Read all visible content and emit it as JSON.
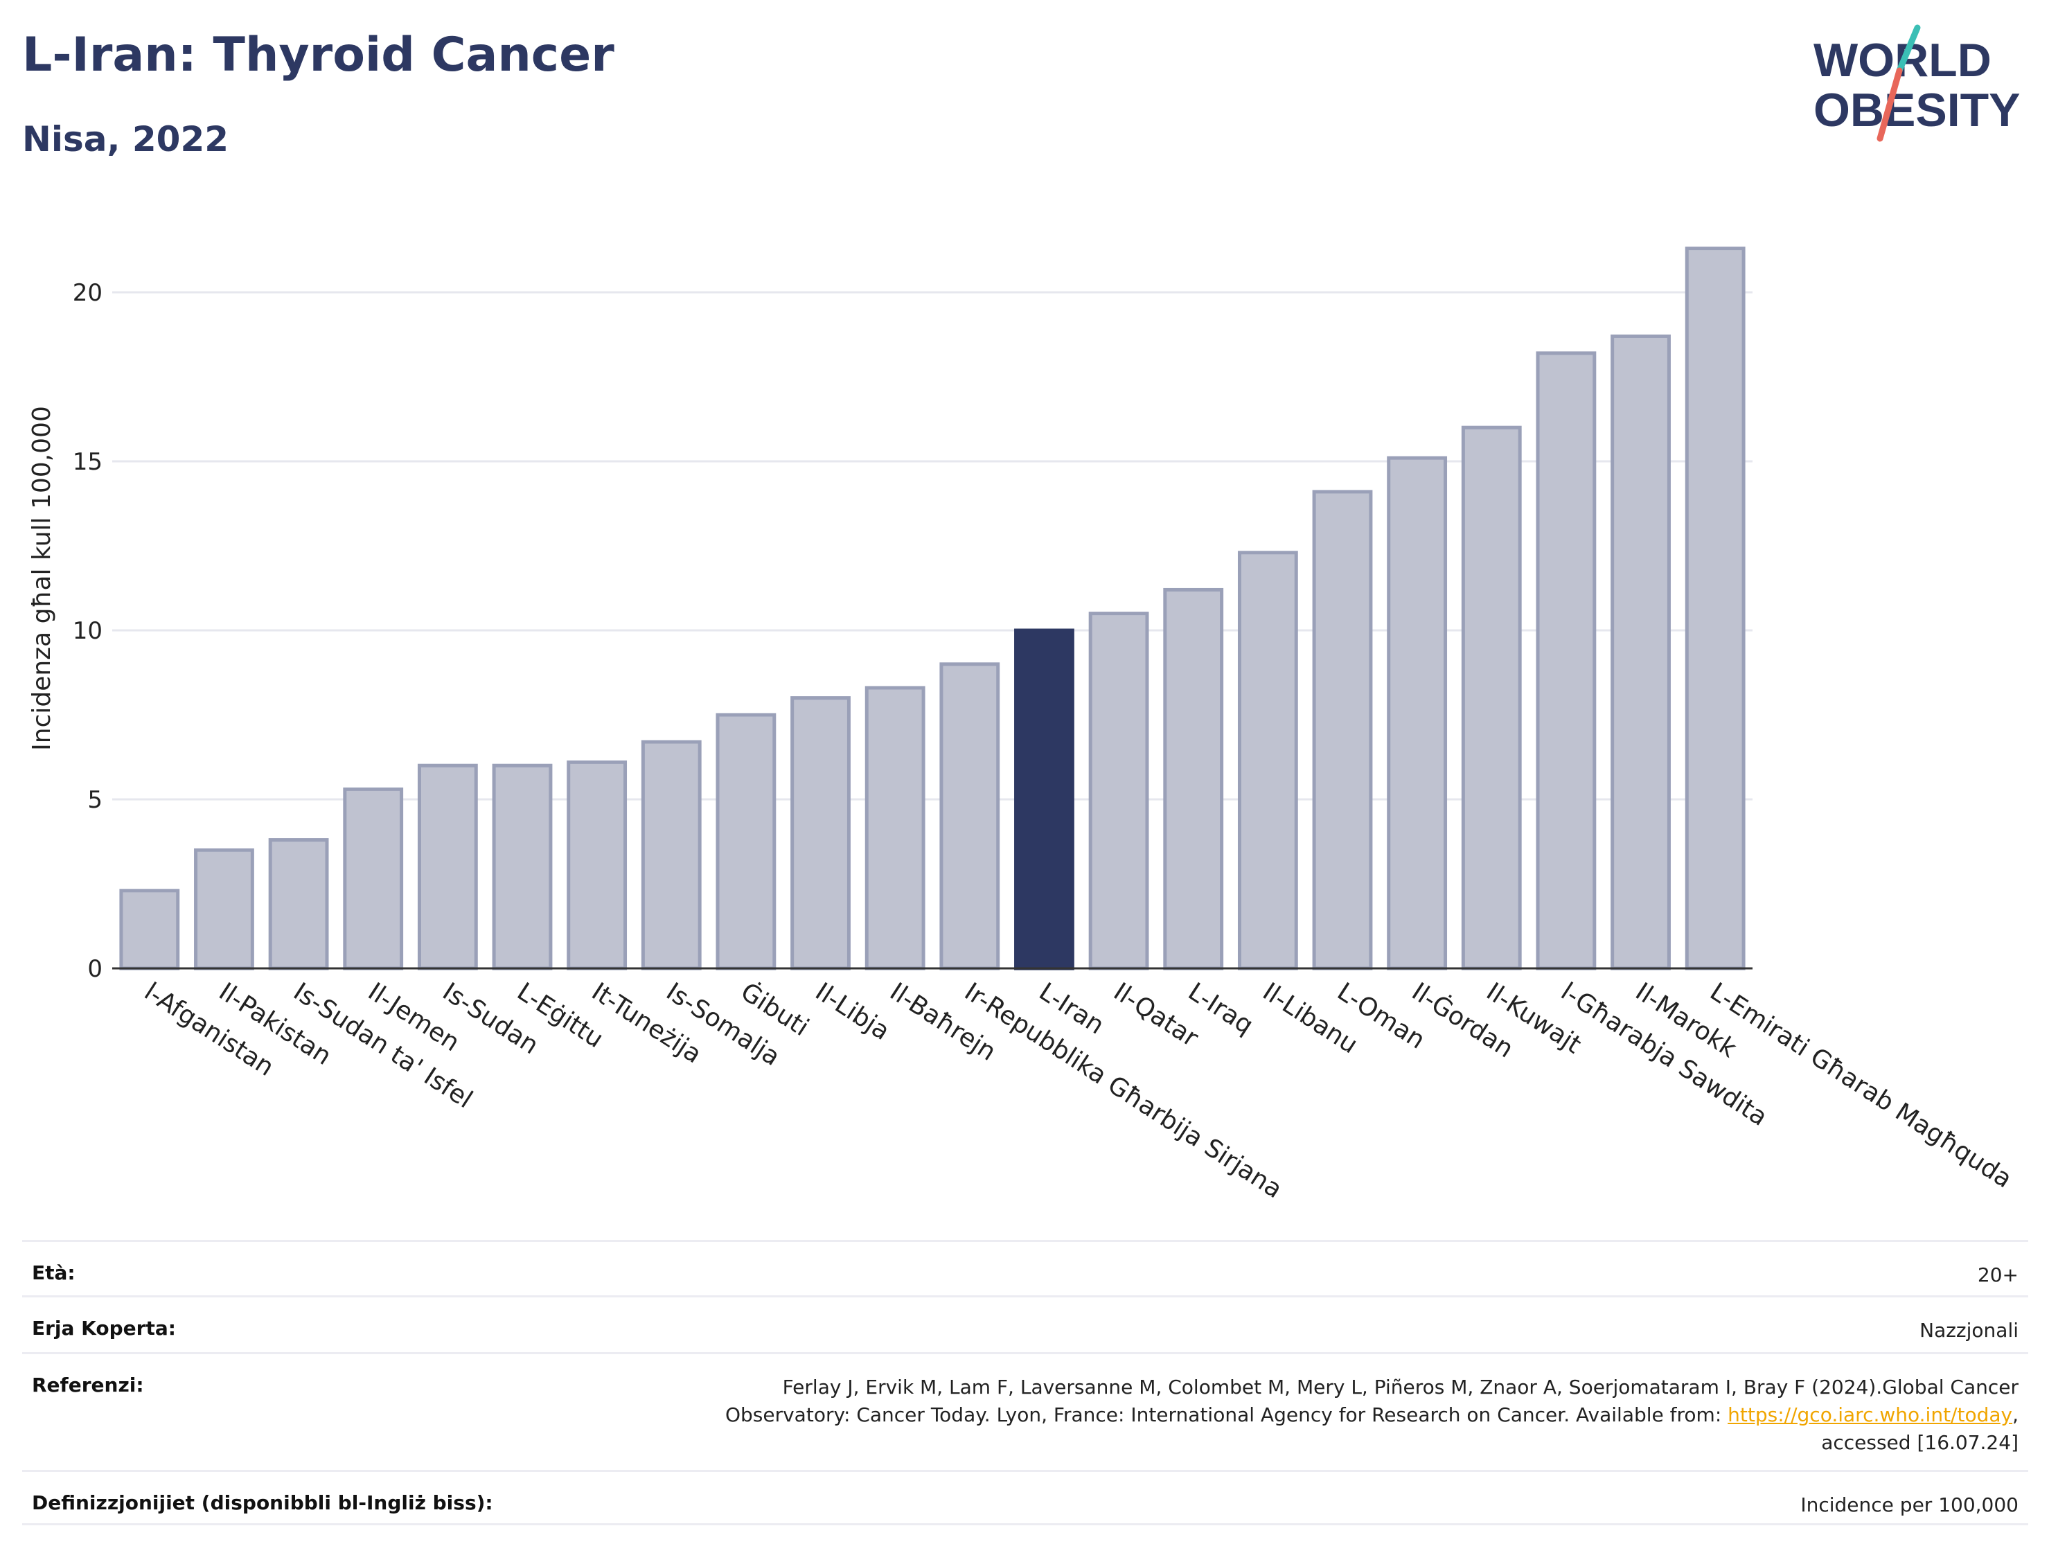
{
  "header": {
    "title": "L-Iran: Thyroid Cancer",
    "subtitle": "Nisa, 2022"
  },
  "logo": {
    "line1": "WORLD",
    "line2": "OBESITY",
    "text_color": "#2d3862",
    "slash_colors": [
      "#3bbfb5",
      "#e8675a"
    ]
  },
  "chart_data": {
    "type": "bar",
    "categories": [
      "l-Afganistan",
      "Il-Pakistan",
      "Is-Sudan ta' Isfel",
      "Il-Jemen",
      "Is-Sudan",
      "L-Eġittu",
      "It-Tuneżija",
      "Is-Somalja",
      "Ġibuti",
      "Il-Libja",
      "Il-Baħrejn",
      "Ir-Repubblika Għarbija Sirjana",
      "L-Iran",
      "Il-Qatar",
      "L-Iraq",
      "Il-Libanu",
      "L-Oman",
      "Il-Ġordan",
      "Il-Kuwajt",
      "l-Għarabja Sawdita",
      "Il-Marokk",
      "L-Emirati Għarab Magħquda"
    ],
    "values": [
      2.3,
      3.5,
      3.8,
      5.3,
      6.0,
      6.0,
      6.1,
      6.7,
      7.5,
      8.0,
      8.3,
      9.0,
      10.0,
      10.5,
      11.2,
      12.3,
      14.1,
      15.1,
      16.0,
      18.2,
      18.7,
      21.3
    ],
    "highlight": "L-Iran",
    "ylabel": "Incidenza għal kull 100,000",
    "xlabel": "",
    "ylim": [
      0,
      22.5
    ],
    "yticks": [
      0,
      5,
      10,
      15,
      20
    ],
    "grid": true,
    "colors": {
      "bar": "#bfc2d0",
      "bar_border": "#9aa0b8",
      "highlight": "#2d3862"
    }
  },
  "meta": {
    "age_label": "Età:",
    "age_value": "20+",
    "area_label": "Erja Koperta:",
    "area_value": "Nazzjonali",
    "ref_label": "Referenzi:",
    "ref_text_line1": "Ferlay J, Ervik M, Lam F, Laversanne M, Colombet M, Mery L, Piñeros M, Znaor A, Soerjomataram I, Bray F (2024).Global Cancer",
    "ref_text_line2": "Observatory: Cancer Today. Lyon, France: International Agency for Research on Cancer. Available from: ",
    "ref_link": "https://gco.iarc.who.int/today",
    "ref_text_line3_prefix": ",",
    "ref_text_line3": "accessed [16.07.24]",
    "def_label": "Definizzjonijiet (disponibbli bl-Ingliż biss):",
    "def_value": "Incidence per 100,000"
  }
}
